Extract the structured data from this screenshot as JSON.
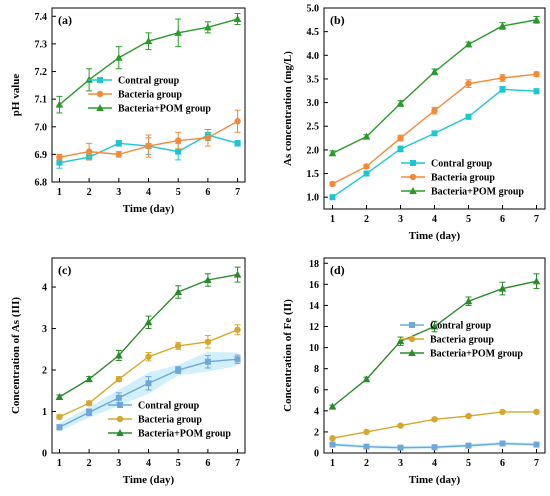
{
  "colors": {
    "cyan": "#1cc6d3",
    "orange": "#f28a3a",
    "green": "#2b9a2b",
    "blue_d": "#6ea7d9",
    "gold": "#d6a72c",
    "green_d": "#2b8a2b"
  },
  "chart_data": [
    {
      "id": "a",
      "panel_label": "(a)",
      "type": "line",
      "xlabel": "Time (day)",
      "ylabel": "pH value",
      "x": [
        1,
        2,
        3,
        4,
        5,
        6,
        7
      ],
      "xlim": [
        0.75,
        7.25
      ],
      "ylim": [
        6.8,
        7.43
      ],
      "yticks": [
        6.8,
        6.9,
        7.0,
        7.1,
        7.2,
        7.3,
        7.4
      ],
      "ytick_labels": [
        "6.8",
        "6.9",
        "7.0",
        "7.1",
        "7.2",
        "7.3",
        "7.4"
      ],
      "legend": "center-right",
      "series": [
        {
          "name": "Contral group",
          "color": "#1cc6d3",
          "marker": "square",
          "values": [
            6.87,
            6.89,
            6.94,
            6.93,
            6.91,
            6.97,
            6.94
          ],
          "errors": [
            0.02,
            0.01,
            0.01,
            0.03,
            0.03,
            0.02,
            0.01
          ]
        },
        {
          "name": "Bacteria group",
          "color": "#f28a3a",
          "marker": "circle",
          "values": [
            6.89,
            6.91,
            6.9,
            6.93,
            6.95,
            6.96,
            7.02
          ],
          "errors": [
            0.01,
            0.03,
            0.01,
            0.04,
            0.03,
            0.03,
            0.04
          ]
        },
        {
          "name": "Bacteria+POM group",
          "color": "#2b9a2b",
          "marker": "triangle",
          "values": [
            7.08,
            7.17,
            7.25,
            7.31,
            7.34,
            7.36,
            7.39
          ],
          "errors": [
            0.03,
            0.04,
            0.04,
            0.03,
            0.05,
            0.02,
            0.02
          ]
        }
      ]
    },
    {
      "id": "b",
      "panel_label": "(b)",
      "type": "line",
      "xlabel": "Time (day)",
      "ylabel": "As concentration (mg/L)",
      "x": [
        1,
        2,
        3,
        4,
        5,
        6,
        7
      ],
      "xlim": [
        0.75,
        7.25
      ],
      "ylim": [
        0.75,
        5.0
      ],
      "yticks": [
        1.0,
        1.5,
        2.0,
        2.5,
        3.0,
        3.5,
        4.0,
        4.5,
        5.0
      ],
      "ytick_labels": [
        "1.0",
        "1.5",
        "2.0",
        "2.5",
        "3.0",
        "3.5",
        "4.0",
        "4.5",
        "5.0"
      ],
      "legend": "bottom-right",
      "series": [
        {
          "name": "Contral group",
          "color": "#1cc6d3",
          "marker": "square",
          "values": [
            1.0,
            1.5,
            2.02,
            2.35,
            2.7,
            3.28,
            3.24
          ],
          "errors": [
            0.04,
            0.05,
            0.06,
            0.04,
            0.05,
            0.06,
            0.05
          ]
        },
        {
          "name": "Bacteria group",
          "color": "#f28a3a",
          "marker": "circle",
          "values": [
            1.28,
            1.65,
            2.25,
            2.83,
            3.4,
            3.52,
            3.6
          ],
          "errors": [
            0.03,
            0.04,
            0.06,
            0.07,
            0.08,
            0.07,
            0.05
          ]
        },
        {
          "name": "Bacteria+POM group",
          "color": "#2b9a2b",
          "marker": "triangle",
          "values": [
            1.93,
            2.28,
            2.98,
            3.65,
            4.23,
            4.62,
            4.75
          ],
          "errors": [
            0.05,
            0.04,
            0.06,
            0.06,
            0.05,
            0.07,
            0.07
          ]
        }
      ]
    },
    {
      "id": "c",
      "panel_label": "(c)",
      "type": "line",
      "xlabel": "Time (day)",
      "ylabel": "Concentration of As (III)",
      "x": [
        1,
        2,
        3,
        4,
        5,
        6,
        7
      ],
      "xlim": [
        0.75,
        7.25
      ],
      "ylim": [
        0,
        4.7
      ],
      "yticks": [
        0,
        1,
        2,
        3,
        4
      ],
      "ytick_labels": [
        "0",
        "1",
        "2",
        "3",
        "4"
      ],
      "legend": "bottom-right",
      "series": [
        {
          "name": "Contral group",
          "color": "#6ea7d9",
          "marker": "square",
          "values": [
            0.62,
            0.98,
            1.33,
            1.68,
            2.0,
            2.2,
            2.26
          ],
          "errors": [
            0.06,
            0.08,
            0.12,
            0.16,
            0.08,
            0.15,
            0.1
          ],
          "band": true
        },
        {
          "name": "Bacteria group",
          "color": "#d6a72c",
          "marker": "circle",
          "values": [
            0.87,
            1.2,
            1.78,
            2.32,
            2.58,
            2.68,
            2.97
          ],
          "errors": [
            0.05,
            0.05,
            0.06,
            0.1,
            0.08,
            0.15,
            0.12
          ]
        },
        {
          "name": "Bacteria+POM group",
          "color": "#2b8a2b",
          "marker": "triangle",
          "values": [
            1.35,
            1.78,
            2.35,
            3.15,
            3.88,
            4.17,
            4.3
          ],
          "errors": [
            0.05,
            0.06,
            0.12,
            0.15,
            0.15,
            0.15,
            0.18
          ]
        }
      ]
    },
    {
      "id": "d",
      "panel_label": "(d)",
      "type": "line",
      "xlabel": "Time (day)",
      "ylabel": "Concentration of Fe (II)",
      "x": [
        1,
        2,
        3,
        4,
        5,
        6,
        7
      ],
      "xlim": [
        0.75,
        7.25
      ],
      "ylim": [
        0,
        18.5
      ],
      "yticks": [
        0,
        2,
        4,
        6,
        8,
        10,
        12,
        14,
        16,
        18
      ],
      "ytick_labels": [
        "0",
        "2",
        "4",
        "6",
        "8",
        "10",
        "12",
        "14",
        "16",
        "18"
      ],
      "legend": "center-right",
      "series": [
        {
          "name": "Contral group",
          "color": "#6ea7d9",
          "marker": "square",
          "values": [
            0.8,
            0.6,
            0.5,
            0.55,
            0.7,
            0.9,
            0.8
          ],
          "errors": [
            0.1,
            0.1,
            0.1,
            0.1,
            0.1,
            0.1,
            0.1
          ],
          "band": true
        },
        {
          "name": "Bacteria group",
          "color": "#d6a72c",
          "marker": "circle",
          "values": [
            1.4,
            2.0,
            2.6,
            3.2,
            3.5,
            3.9,
            3.9
          ],
          "errors": [
            0.1,
            0.1,
            0.1,
            0.15,
            0.15,
            0.1,
            0.1
          ]
        },
        {
          "name": "Bacteria+POM group",
          "color": "#2b8a2b",
          "marker": "triangle",
          "values": [
            4.4,
            7.0,
            10.6,
            12.0,
            14.4,
            15.6,
            16.3
          ],
          "errors": [
            0.15,
            0.2,
            0.4,
            0.5,
            0.4,
            0.6,
            0.7
          ]
        }
      ]
    }
  ]
}
